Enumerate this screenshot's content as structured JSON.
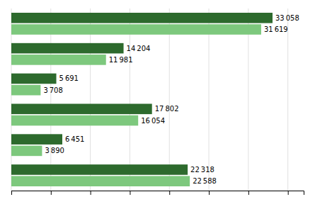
{
  "chart_data": {
    "type": "bar",
    "orientation": "horizontal",
    "categories": [
      null,
      null,
      null,
      null,
      null,
      null
    ],
    "series": [
      {
        "color": "#2d6a2d",
        "values": [
          33058,
          14204,
          5691,
          17802,
          6451,
          22318
        ],
        "value_labels": [
          "33 058",
          "14 204",
          "5 691",
          "17 802",
          "6 451",
          "22 318"
        ]
      },
      {
        "color": "#7dc87d",
        "values": [
          31619,
          11981,
          3708,
          16054,
          3890,
          22588
        ],
        "value_labels": [
          "31 619",
          "11 981",
          "3 708",
          "16 054",
          "3 890",
          "22 588"
        ]
      }
    ],
    "xlim": [
      0,
      37000
    ],
    "xticks": [
      0,
      5000,
      10000,
      15000,
      20000,
      25000,
      30000,
      35000
    ],
    "grid": true,
    "data_labels": true,
    "tick_labels": false
  }
}
